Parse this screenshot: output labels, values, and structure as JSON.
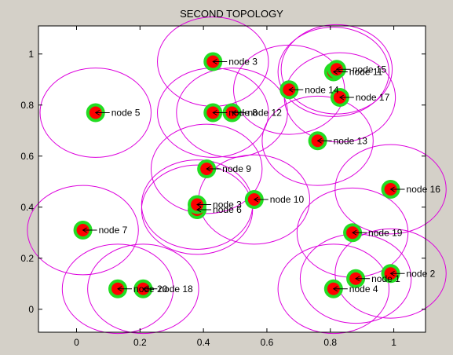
{
  "chart_data": {
    "type": "scatter",
    "title": "SECOND TOPOLOGY",
    "xlabel": "",
    "ylabel": "",
    "xlim": [
      -0.12,
      1.1
    ],
    "ylim": [
      -0.09,
      1.11
    ],
    "xticks": [
      "0",
      "0.2",
      "0.4",
      "0.6",
      "0.8",
      "1"
    ],
    "xtick_values": [
      0,
      0.2,
      0.4,
      0.6,
      0.8,
      1
    ],
    "yticks": [
      "0",
      "0.2",
      "0.4",
      "0.6",
      "0.8",
      "1"
    ],
    "ytick_values": [
      0,
      0.2,
      0.4,
      0.6,
      0.8,
      1
    ],
    "range_radius": 0.175,
    "grid": false,
    "colors": {
      "node_fill": "#ff0000",
      "node_halo": "#22dd22",
      "range_circle": "#dd00dd",
      "arrow": "#000000",
      "plot_bg": "#ffffff",
      "figure_bg": "#d4d0c8"
    },
    "nodes": [
      {
        "label": "node 1",
        "x": 0.88,
        "y": 0.12
      },
      {
        "label": "node 2",
        "x": 0.99,
        "y": 0.14
      },
      {
        "label": "node 3",
        "x": 0.43,
        "y": 0.97
      },
      {
        "label": "node 4",
        "x": 0.81,
        "y": 0.08
      },
      {
        "label": "node 5",
        "x": 0.06,
        "y": 0.77
      },
      {
        "label": "node 6",
        "x": 0.38,
        "y": 0.39
      },
      {
        "label": "node 7",
        "x": 0.02,
        "y": 0.31
      },
      {
        "label": "node 8",
        "x": 0.43,
        "y": 0.77
      },
      {
        "label": "node 9",
        "x": 0.41,
        "y": 0.55
      },
      {
        "label": "node 10",
        "x": 0.56,
        "y": 0.43
      },
      {
        "label": "node 11",
        "x": 0.81,
        "y": 0.93
      },
      {
        "label": "node 12",
        "x": 0.49,
        "y": 0.77
      },
      {
        "label": "node 13",
        "x": 0.76,
        "y": 0.66
      },
      {
        "label": "node 14",
        "x": 0.67,
        "y": 0.86
      },
      {
        "label": "node 15",
        "x": 0.82,
        "y": 0.94
      },
      {
        "label": "node 16",
        "x": 0.99,
        "y": 0.47
      },
      {
        "label": "node 17",
        "x": 0.83,
        "y": 0.83
      },
      {
        "label": "node 18",
        "x": 0.21,
        "y": 0.08
      },
      {
        "label": "node 19",
        "x": 0.87,
        "y": 0.3
      },
      {
        "label": "node 20",
        "x": 0.13,
        "y": 0.08
      },
      {
        "label": "node 3",
        "x": 0.38,
        "y": 0.41
      }
    ]
  }
}
